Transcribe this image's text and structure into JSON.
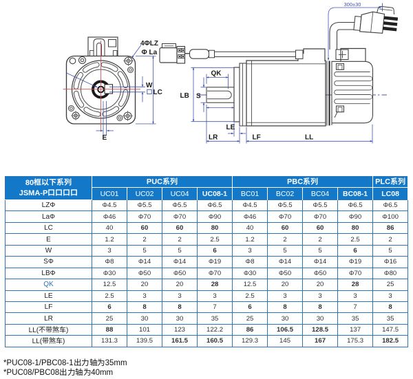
{
  "page": {
    "background": "#ffffff"
  },
  "drawing": {
    "front_view": {
      "label_holes": "4ΦLZ",
      "label_pilot": "Φ La",
      "label_keyway_width": "W",
      "label_flange_size": "LC",
      "label_key_offset": "E"
    },
    "side_view": {
      "label_pilot_dia": "LB",
      "label_shaft_dia": "S",
      "label_key_length": "QK",
      "label_shoulder": "LE",
      "label_shaft_ext": "LR",
      "label_flange_thk": "LF",
      "label_body_len": "LL",
      "label_cable_len": "300±30"
    },
    "colors": {
      "outline": "#3d3d3d",
      "dimension": "#4053ae",
      "centerline": "#cb4646"
    }
  },
  "table": {
    "corner_header_line1": "80框以下系列",
    "corner_header_line2": "JSMA-P口口口口",
    "groups": [
      {
        "label": "PUC系列",
        "span": 4
      },
      {
        "label": "PBC系列",
        "span": 4
      },
      {
        "label": "PLC系列",
        "span": 1
      }
    ],
    "columns": [
      "UC01",
      "UC02",
      "UC04",
      "UC08-1",
      "BC01",
      "BC02",
      "BC04",
      "BC08-1",
      "LC08"
    ],
    "columns_bold": [
      false,
      false,
      false,
      true,
      false,
      false,
      false,
      true,
      true
    ],
    "rows": [
      {
        "label": "LZΦ",
        "values": [
          "Φ4.5",
          "Φ5.5",
          "Φ5.5",
          "Φ6.5",
          "Φ4.5",
          "Φ5.5",
          "Φ5.5",
          "Φ6.5",
          "Φ6.5"
        ],
        "bold": [
          0,
          0,
          0,
          0,
          0,
          0,
          0,
          0,
          0
        ]
      },
      {
        "label": "LaΦ",
        "values": [
          "Φ46",
          "Φ70",
          "Φ70",
          "Φ90",
          "Φ46",
          "Φ70",
          "Φ70",
          "Φ90",
          "Φ100"
        ],
        "bold": [
          0,
          0,
          0,
          0,
          0,
          0,
          0,
          0,
          0
        ]
      },
      {
        "label": "LC",
        "values": [
          "40",
          "60",
          "60",
          "80",
          "40",
          "60",
          "60",
          "80",
          "86"
        ],
        "bold": [
          0,
          1,
          1,
          1,
          0,
          1,
          1,
          1,
          1
        ]
      },
      {
        "label": "E",
        "values": [
          "1.2",
          "2",
          "2",
          "2.5",
          "1.2",
          "2",
          "2",
          "2.5",
          "2"
        ],
        "bold": [
          0,
          0,
          0,
          0,
          0,
          0,
          0,
          0,
          0
        ]
      },
      {
        "label": "W",
        "values": [
          "3",
          "5",
          "5",
          "6",
          "3",
          "5",
          "5",
          "6",
          "5"
        ],
        "bold": [
          0,
          0,
          0,
          1,
          0,
          0,
          0,
          1,
          0
        ]
      },
      {
        "label": "SΦ",
        "values": [
          "Φ8",
          "Φ14",
          "Φ14",
          "Φ19",
          "Φ8",
          "Φ14",
          "Φ14",
          "Φ19",
          "Φ16"
        ],
        "bold": [
          0,
          0,
          0,
          0,
          0,
          0,
          0,
          0,
          0
        ]
      },
      {
        "label": "LBΦ",
        "values": [
          "Φ30",
          "Φ50",
          "Φ50",
          "Φ70",
          "Φ30",
          "Φ50",
          "Φ50",
          "Φ70",
          "Φ80"
        ],
        "bold": [
          0,
          0,
          0,
          0,
          0,
          0,
          0,
          0,
          0
        ]
      },
      {
        "label": "QK",
        "label_color": "#2e75b6",
        "values": [
          "12.5",
          "20",
          "20",
          "28",
          "12.5",
          "20",
          "20",
          "28",
          "25"
        ],
        "bold": [
          0,
          0,
          0,
          1,
          0,
          0,
          0,
          1,
          0
        ]
      },
      {
        "label": "LE",
        "values": [
          "2.5",
          "3",
          "3",
          "3",
          "2.5",
          "3",
          "3",
          "3",
          "3"
        ],
        "bold": [
          0,
          0,
          0,
          0,
          0,
          0,
          0,
          0,
          0
        ]
      },
      {
        "label": "LF",
        "values": [
          "6",
          "8",
          "8",
          "7",
          "6",
          "8",
          "8",
          "7",
          "8"
        ],
        "bold": [
          1,
          1,
          1,
          0,
          1,
          1,
          1,
          0,
          1
        ]
      },
      {
        "label": "LR",
        "values": [
          "25",
          "30",
          "30",
          "35",
          "25",
          "30",
          "30",
          "35",
          "35"
        ],
        "bold": [
          0,
          0,
          0,
          0,
          0,
          0,
          0,
          0,
          0
        ]
      },
      {
        "label": "LL(不带煞车)",
        "values": [
          "88",
          "101",
          "123",
          "122.2",
          "86",
          "106.5",
          "128.5",
          "137",
          "147.5"
        ],
        "bold": [
          1,
          0,
          0,
          0,
          1,
          1,
          1,
          0,
          0
        ]
      },
      {
        "label": "LL(带煞车)",
        "values": [
          "131.3",
          "139.5",
          "161.5",
          "160.5",
          "129.3",
          "145",
          "167",
          "175.3",
          "182.5"
        ],
        "bold": [
          0,
          0,
          1,
          1,
          0,
          0,
          1,
          0,
          1
        ]
      }
    ],
    "colors": {
      "header_bg": "#1478c9",
      "border": "#2e75b6",
      "header_text": "#ffffff",
      "cell_text": "#303030",
      "label_text": "#1c1c1c"
    }
  },
  "footnotes": [
    "*PUC08-1/PBC08-1出力轴为35mm",
    "*PUC08/PBC08出力轴为40mm"
  ]
}
